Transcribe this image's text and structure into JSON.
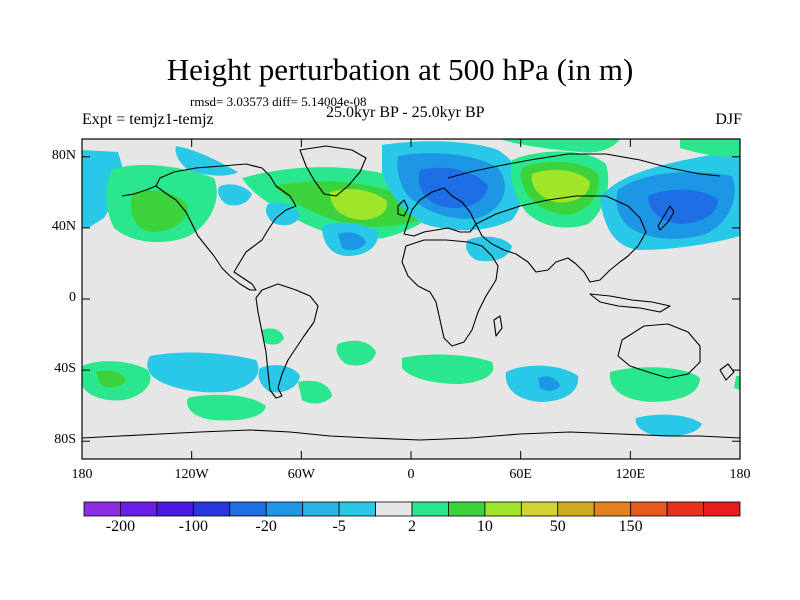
{
  "title": "Height perturbation at 500 hPa (in m)",
  "stats": "rmsd= 3.03573 diff= 5.14004e-08",
  "experiment": "Expt = temjz1-temjz",
  "period": "25.0kyr BP - 25.0kyr BP",
  "season": "DJF",
  "map": {
    "projection": "cylindrical equidistant",
    "lat_range": [
      -90,
      90
    ],
    "lon_range": [
      -180,
      180
    ],
    "lat_ticks": [
      {
        "value": 80,
        "label": "80N"
      },
      {
        "value": 40,
        "label": "40N"
      },
      {
        "value": 0,
        "label": "0"
      },
      {
        "value": -40,
        "label": "40S"
      },
      {
        "value": -80,
        "label": "80S"
      }
    ],
    "lon_ticks": [
      {
        "value": -180,
        "label": "180"
      },
      {
        "value": -120,
        "label": "120W"
      },
      {
        "value": -60,
        "label": "60W"
      },
      {
        "value": 0,
        "label": "0"
      },
      {
        "value": 60,
        "label": "60E"
      },
      {
        "value": 120,
        "label": "120E"
      },
      {
        "value": 180,
        "label": "180"
      }
    ],
    "background_color": "#e6e6e6"
  },
  "colorbar": {
    "colors": [
      "#8c2ee6",
      "#6a1ee6",
      "#4a18e0",
      "#2836e0",
      "#1e6ee6",
      "#1e96e6",
      "#2ab4e6",
      "#28c8e6",
      "#e6e6e6",
      "#2ae68c",
      "#3cd23c",
      "#a0e628",
      "#d2d232",
      "#d2aa1e",
      "#e6821e",
      "#e65a1e",
      "#e6321e",
      "#e61e1e"
    ],
    "labels": [
      {
        "index": 1,
        "text": "-200"
      },
      {
        "index": 3,
        "text": "-100"
      },
      {
        "index": 5,
        "text": "-20"
      },
      {
        "index": 7,
        "text": "-5"
      },
      {
        "index": 9,
        "text": "2"
      },
      {
        "index": 11,
        "text": "10"
      },
      {
        "index": 13,
        "text": "50"
      },
      {
        "index": 15,
        "text": "150"
      }
    ]
  }
}
